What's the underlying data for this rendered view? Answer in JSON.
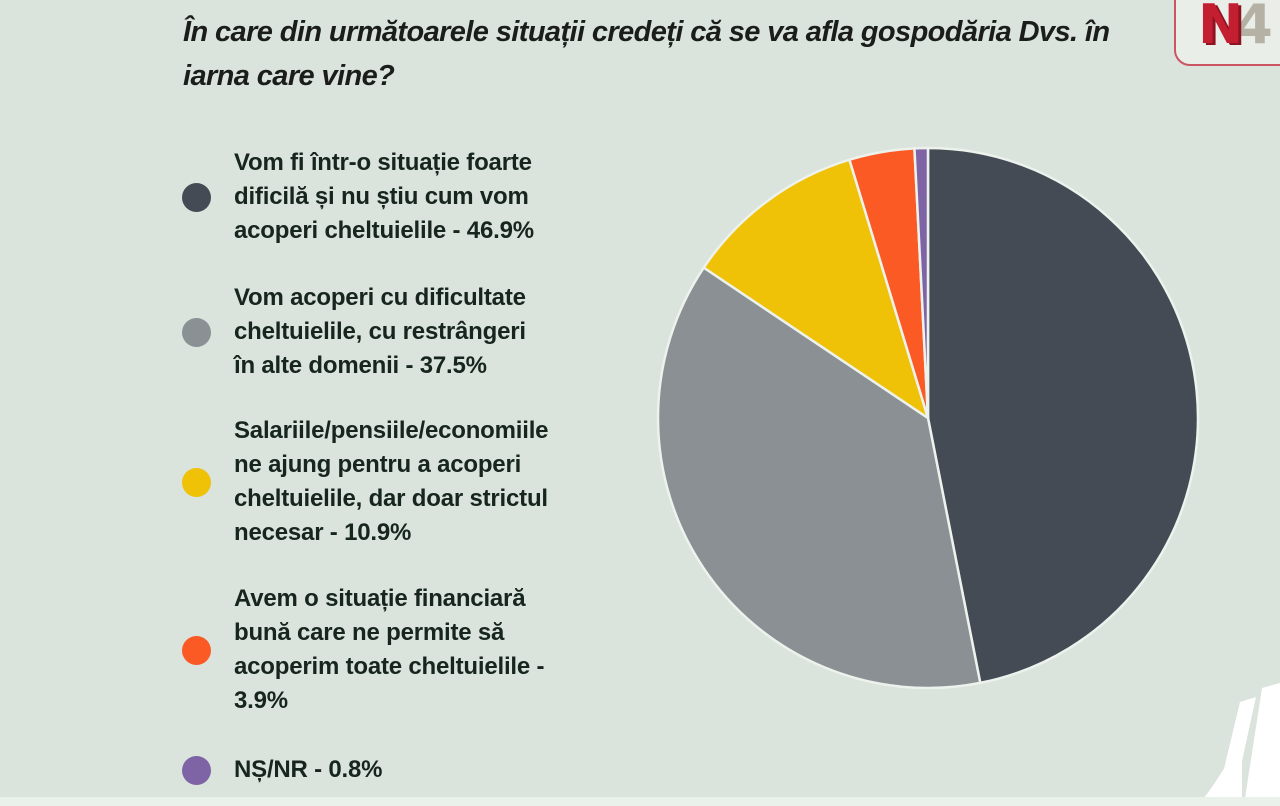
{
  "background": {
    "color": "#dae3dc",
    "bottom_strip_color": "#eaf1eb"
  },
  "title": {
    "line1": "În care din următoarele situații credeți că se va afla gospodăria Dvs. în",
    "line2": "iarna care vine?",
    "color": "#1b1d1a"
  },
  "legend": {
    "items": [
      {
        "label": "Vom fi într-o situație foarte\ndificilă și nu știu cum vom\nacoperi cheltuielile - 46.9%",
        "color": "#454b55"
      },
      {
        "label": "Vom acoperi cu dificultate\ncheltuielile, cu restrângeri\nîn alte domenii - 37.5%",
        "color": "#8a9093"
      },
      {
        "label": "Salariile/pensiile/economiile\nne ajung pentru a acoperi\ncheltuielile, dar doar strictul\nnecesar - 10.9%",
        "color": "#efc107"
      },
      {
        "label": "Avem o situație financiară\nbună care ne permite să\nacoperim toate cheltuielile -\n3.9%",
        "color": "#fb5a25"
      },
      {
        "label": "NȘ/NR - 0.8%",
        "color": "#7e64a5"
      }
    ]
  },
  "chart_data": {
    "type": "pie",
    "title": "În care din următoarele situații credeți că se va afla gospodăria Dvs. în iarna care vine?",
    "labels": [
      "Vom fi într-o situație foarte dificilă și nu știu cum vom acoperi cheltuielile",
      "Vom acoperi cu dificultate cheltuielile, cu restrângeri în alte domenii",
      "Salariile/pensiile/economiile ne ajung pentru a acoperi cheltuielile, dar doar strictul necesar",
      "Avem o situație financiară bună care ne permite să acoperim toate cheltuielile",
      "NȘ/NR"
    ],
    "values": [
      46.9,
      37.5,
      10.9,
      3.9,
      0.8
    ],
    "colors": [
      "#454b55",
      "#8a9093",
      "#efc107",
      "#fb5a25",
      "#7e64a5"
    ],
    "start_angle_deg": 0,
    "direction": "clockwise",
    "slice_border_color": "#edf2ed",
    "legend_position": "left"
  },
  "logo": {
    "letter_n": "N",
    "letter_4": "4",
    "n_color": "#c41f30",
    "n_shadow_color": "#8e1322",
    "four_color": "#b6b1a5",
    "card_bg": "#e9eee8",
    "card_border": "#cb5560"
  },
  "watermark": {
    "color": "#ffffff"
  }
}
